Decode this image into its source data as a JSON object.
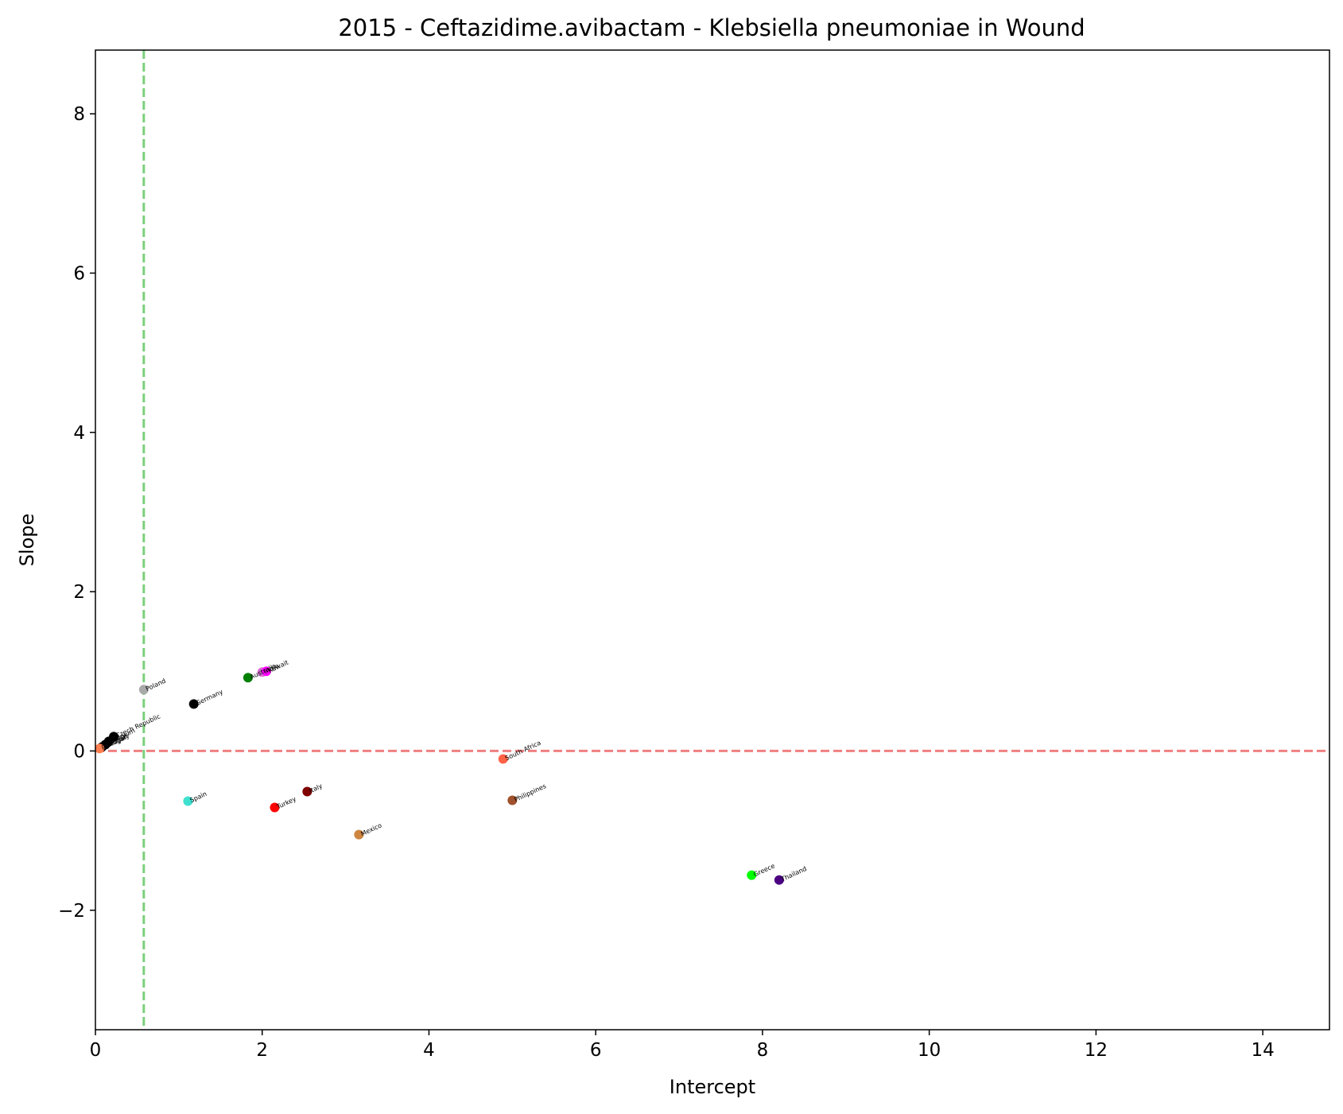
{
  "chart_data": {
    "type": "scatter",
    "title": "2015 - Ceftazidime.avibactam - Klebsiella pneumoniae in Wound",
    "xlabel": "Intercept",
    "ylabel": "Slope",
    "xlim": [
      0,
      14.8
    ],
    "ylim": [
      -3.5,
      8.8
    ],
    "xticks": [
      0,
      2,
      4,
      6,
      8,
      10,
      12,
      14
    ],
    "yticks": [
      -2,
      0,
      2,
      4,
      6,
      8
    ],
    "ytick_labels": [
      "−2",
      "0",
      "2",
      "4",
      "6",
      "8"
    ],
    "grid": false,
    "reference_lines": [
      {
        "orientation": "horizontal",
        "value": 0,
        "color": "#f08080",
        "style": "dashed"
      },
      {
        "orientation": "vertical",
        "value": 0.58,
        "color": "#7ccf7c",
        "style": "dashed"
      }
    ],
    "points": [
      {
        "label": "Poland",
        "x": 0.58,
        "y": 0.77,
        "color": "#a9a9a9"
      },
      {
        "label": "Germany",
        "x": 1.18,
        "y": 0.59,
        "color": "#000000"
      },
      {
        "label": "Australia",
        "x": 1.83,
        "y": 0.92,
        "color": "#008000"
      },
      {
        "label": "India",
        "x": 2.0,
        "y": 0.99,
        "color": "#da70d6"
      },
      {
        "label": "Kuwait",
        "x": 2.05,
        "y": 1.0,
        "color": "#ff00ff"
      },
      {
        "label": "Czech Republic",
        "x": 0.22,
        "y": 0.18,
        "color": "#000000"
      },
      {
        "label": "Belgium",
        "x": 0.16,
        "y": 0.12,
        "color": "#000000"
      },
      {
        "label": "France",
        "x": 0.12,
        "y": 0.08,
        "color": "#000000"
      },
      {
        "label": "Hungary",
        "x": 0.08,
        "y": 0.05,
        "color": "#000000"
      },
      {
        "label": "Portugal",
        "x": 0.05,
        "y": 0.03,
        "color": "#ff7f50"
      },
      {
        "label": "South Africa",
        "x": 4.89,
        "y": -0.1,
        "color": "#ff6347"
      },
      {
        "label": "Spain",
        "x": 1.11,
        "y": -0.63,
        "color": "#40e0d0"
      },
      {
        "label": "Turkey",
        "x": 2.15,
        "y": -0.71,
        "color": "#ff0000"
      },
      {
        "label": "Italy",
        "x": 2.54,
        "y": -0.51,
        "color": "#800000"
      },
      {
        "label": "Mexico",
        "x": 3.16,
        "y": -1.05,
        "color": "#cd853f"
      },
      {
        "label": "Philippines",
        "x": 5.0,
        "y": -0.62,
        "color": "#a0522d"
      },
      {
        "label": "Greece",
        "x": 7.87,
        "y": -1.56,
        "color": "#00ff00"
      },
      {
        "label": "Thailand",
        "x": 8.2,
        "y": -1.62,
        "color": "#4b0082"
      }
    ]
  }
}
